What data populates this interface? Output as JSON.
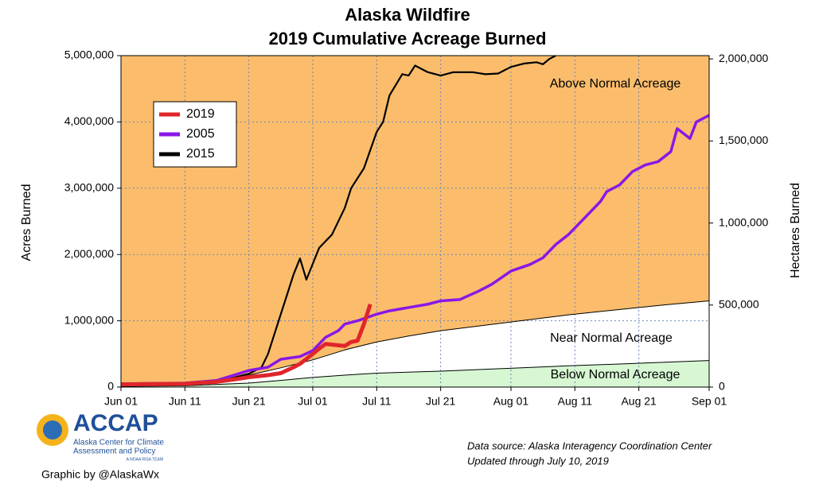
{
  "chart_data": {
    "type": "line",
    "title": [
      "Alaska Wildfire",
      "2019 Cumulative Acreage Burned"
    ],
    "ylabel": "Acres Burned",
    "y2label": "Hectares Burned",
    "xlim": [
      0,
      92
    ],
    "xticks": [
      {
        "value": 0,
        "label": "Jun 01"
      },
      {
        "value": 10,
        "label": "Jun 11"
      },
      {
        "value": 20,
        "label": "Jun 21"
      },
      {
        "value": 30,
        "label": "Jul 01"
      },
      {
        "value": 40,
        "label": "Jul 11"
      },
      {
        "value": 50,
        "label": "Jul 21"
      },
      {
        "value": 61,
        "label": "Aug 01"
      },
      {
        "value": 71,
        "label": "Aug 11"
      },
      {
        "value": 81,
        "label": "Aug 21"
      },
      {
        "value": 92,
        "label": "Sep 01"
      }
    ],
    "ylim": [
      0,
      5000000
    ],
    "yticks": [
      0,
      {
        "value": 1000000,
        "label": "1,000,000"
      },
      {
        "value": 2000000,
        "label": "2,000,000"
      },
      {
        "value": 3000000,
        "label": "3,000,000"
      },
      {
        "value": 4000000,
        "label": "4,000,000"
      },
      {
        "value": 5000000,
        "label": "5,000,000"
      }
    ],
    "y2lim": [
      0,
      2020000
    ],
    "y2ticks": [
      0,
      {
        "value": 500000,
        "label": "500,000"
      },
      {
        "value": 1000000,
        "label": "1,000,000"
      },
      {
        "value": 1500000,
        "label": "1,500,000"
      },
      {
        "value": 2000000,
        "label": "2,000,000"
      }
    ],
    "grid": true,
    "series": [
      {
        "name": "2019",
        "color": "#e0262b",
        "x": [
          0,
          5,
          10,
          15,
          18,
          20,
          23,
          25,
          27,
          28,
          30,
          31,
          32,
          33,
          35,
          36,
          37,
          38,
          39
        ],
        "values": [
          40000,
          45000,
          50000,
          80000,
          120000,
          150000,
          180000,
          210000,
          300000,
          350000,
          500000,
          580000,
          650000,
          640000,
          620000,
          680000,
          700000,
          950000,
          1250000
        ]
      },
      {
        "name": "2005",
        "color": "#8b17e6",
        "x": [
          0,
          10,
          15,
          20,
          23,
          25,
          28,
          30,
          32,
          34,
          35,
          37,
          40,
          42,
          45,
          48,
          50,
          53,
          56,
          58,
          61,
          64,
          66,
          68,
          70,
          71,
          73,
          75,
          76,
          78,
          80,
          82,
          84,
          86,
          87,
          89,
          90,
          92
        ],
        "values": [
          50000,
          60000,
          100000,
          250000,
          300000,
          420000,
          460000,
          550000,
          750000,
          850000,
          950000,
          1000000,
          1100000,
          1150000,
          1200000,
          1250000,
          1300000,
          1320000,
          1450000,
          1550000,
          1750000,
          1850000,
          1950000,
          2150000,
          2300000,
          2400000,
          2600000,
          2800000,
          2950000,
          3050000,
          3250000,
          3350000,
          3400000,
          3550000,
          3900000,
          3750000,
          4000000,
          4100000
        ]
      },
      {
        "name": "2015",
        "color": "#000000",
        "x": [
          0,
          10,
          15,
          18,
          20,
          22,
          23,
          24,
          25,
          26,
          27,
          28,
          29,
          31,
          33,
          35,
          36,
          38,
          40,
          41,
          42,
          44,
          45,
          46,
          48,
          50,
          52,
          55,
          57,
          59,
          61,
          63,
          65,
          66,
          67,
          68
        ],
        "values": [
          20000,
          40000,
          70000,
          150000,
          200000,
          300000,
          500000,
          800000,
          1100000,
          1400000,
          1700000,
          1940000,
          1620000,
          2100000,
          2300000,
          2700000,
          3000000,
          3300000,
          3850000,
          4000000,
          4400000,
          4720000,
          4700000,
          4850000,
          4750000,
          4700000,
          4750000,
          4750000,
          4720000,
          4730000,
          4830000,
          4880000,
          4900000,
          4870000,
          4950000,
          5000000
        ]
      }
    ],
    "normal_bands": {
      "upper": {
        "x": [
          0,
          5,
          10,
          15,
          20,
          25,
          30,
          35,
          40,
          45,
          50,
          55,
          60,
          65,
          70,
          75,
          80,
          85,
          92
        ],
        "values": [
          30000,
          40000,
          60000,
          100000,
          180000,
          290000,
          410000,
          560000,
          680000,
          770000,
          850000,
          910000,
          970000,
          1030000,
          1090000,
          1140000,
          1190000,
          1240000,
          1300000
        ]
      },
      "lower": {
        "x": [
          0,
          10,
          20,
          25,
          30,
          35,
          40,
          50,
          60,
          70,
          80,
          92
        ],
        "values": [
          10000,
          20000,
          60000,
          100000,
          145000,
          180000,
          210000,
          240000,
          280000,
          320000,
          355000,
          400000
        ]
      }
    },
    "annotations": [
      "Above Normal Acreage",
      "Near Normal Acreage",
      "Below Normal Acreage"
    ]
  },
  "logo": {
    "name": "ACCAP",
    "lines": [
      "Alaska Center for Climate",
      "Assessment and Policy"
    ],
    "tag": "A NOAA RISA TEAM"
  },
  "credit": "Graphic by @AlaskaWx",
  "source": [
    "Data source: Alaska Interagency Coordination Center",
    "Updated through July 10, 2019"
  ]
}
